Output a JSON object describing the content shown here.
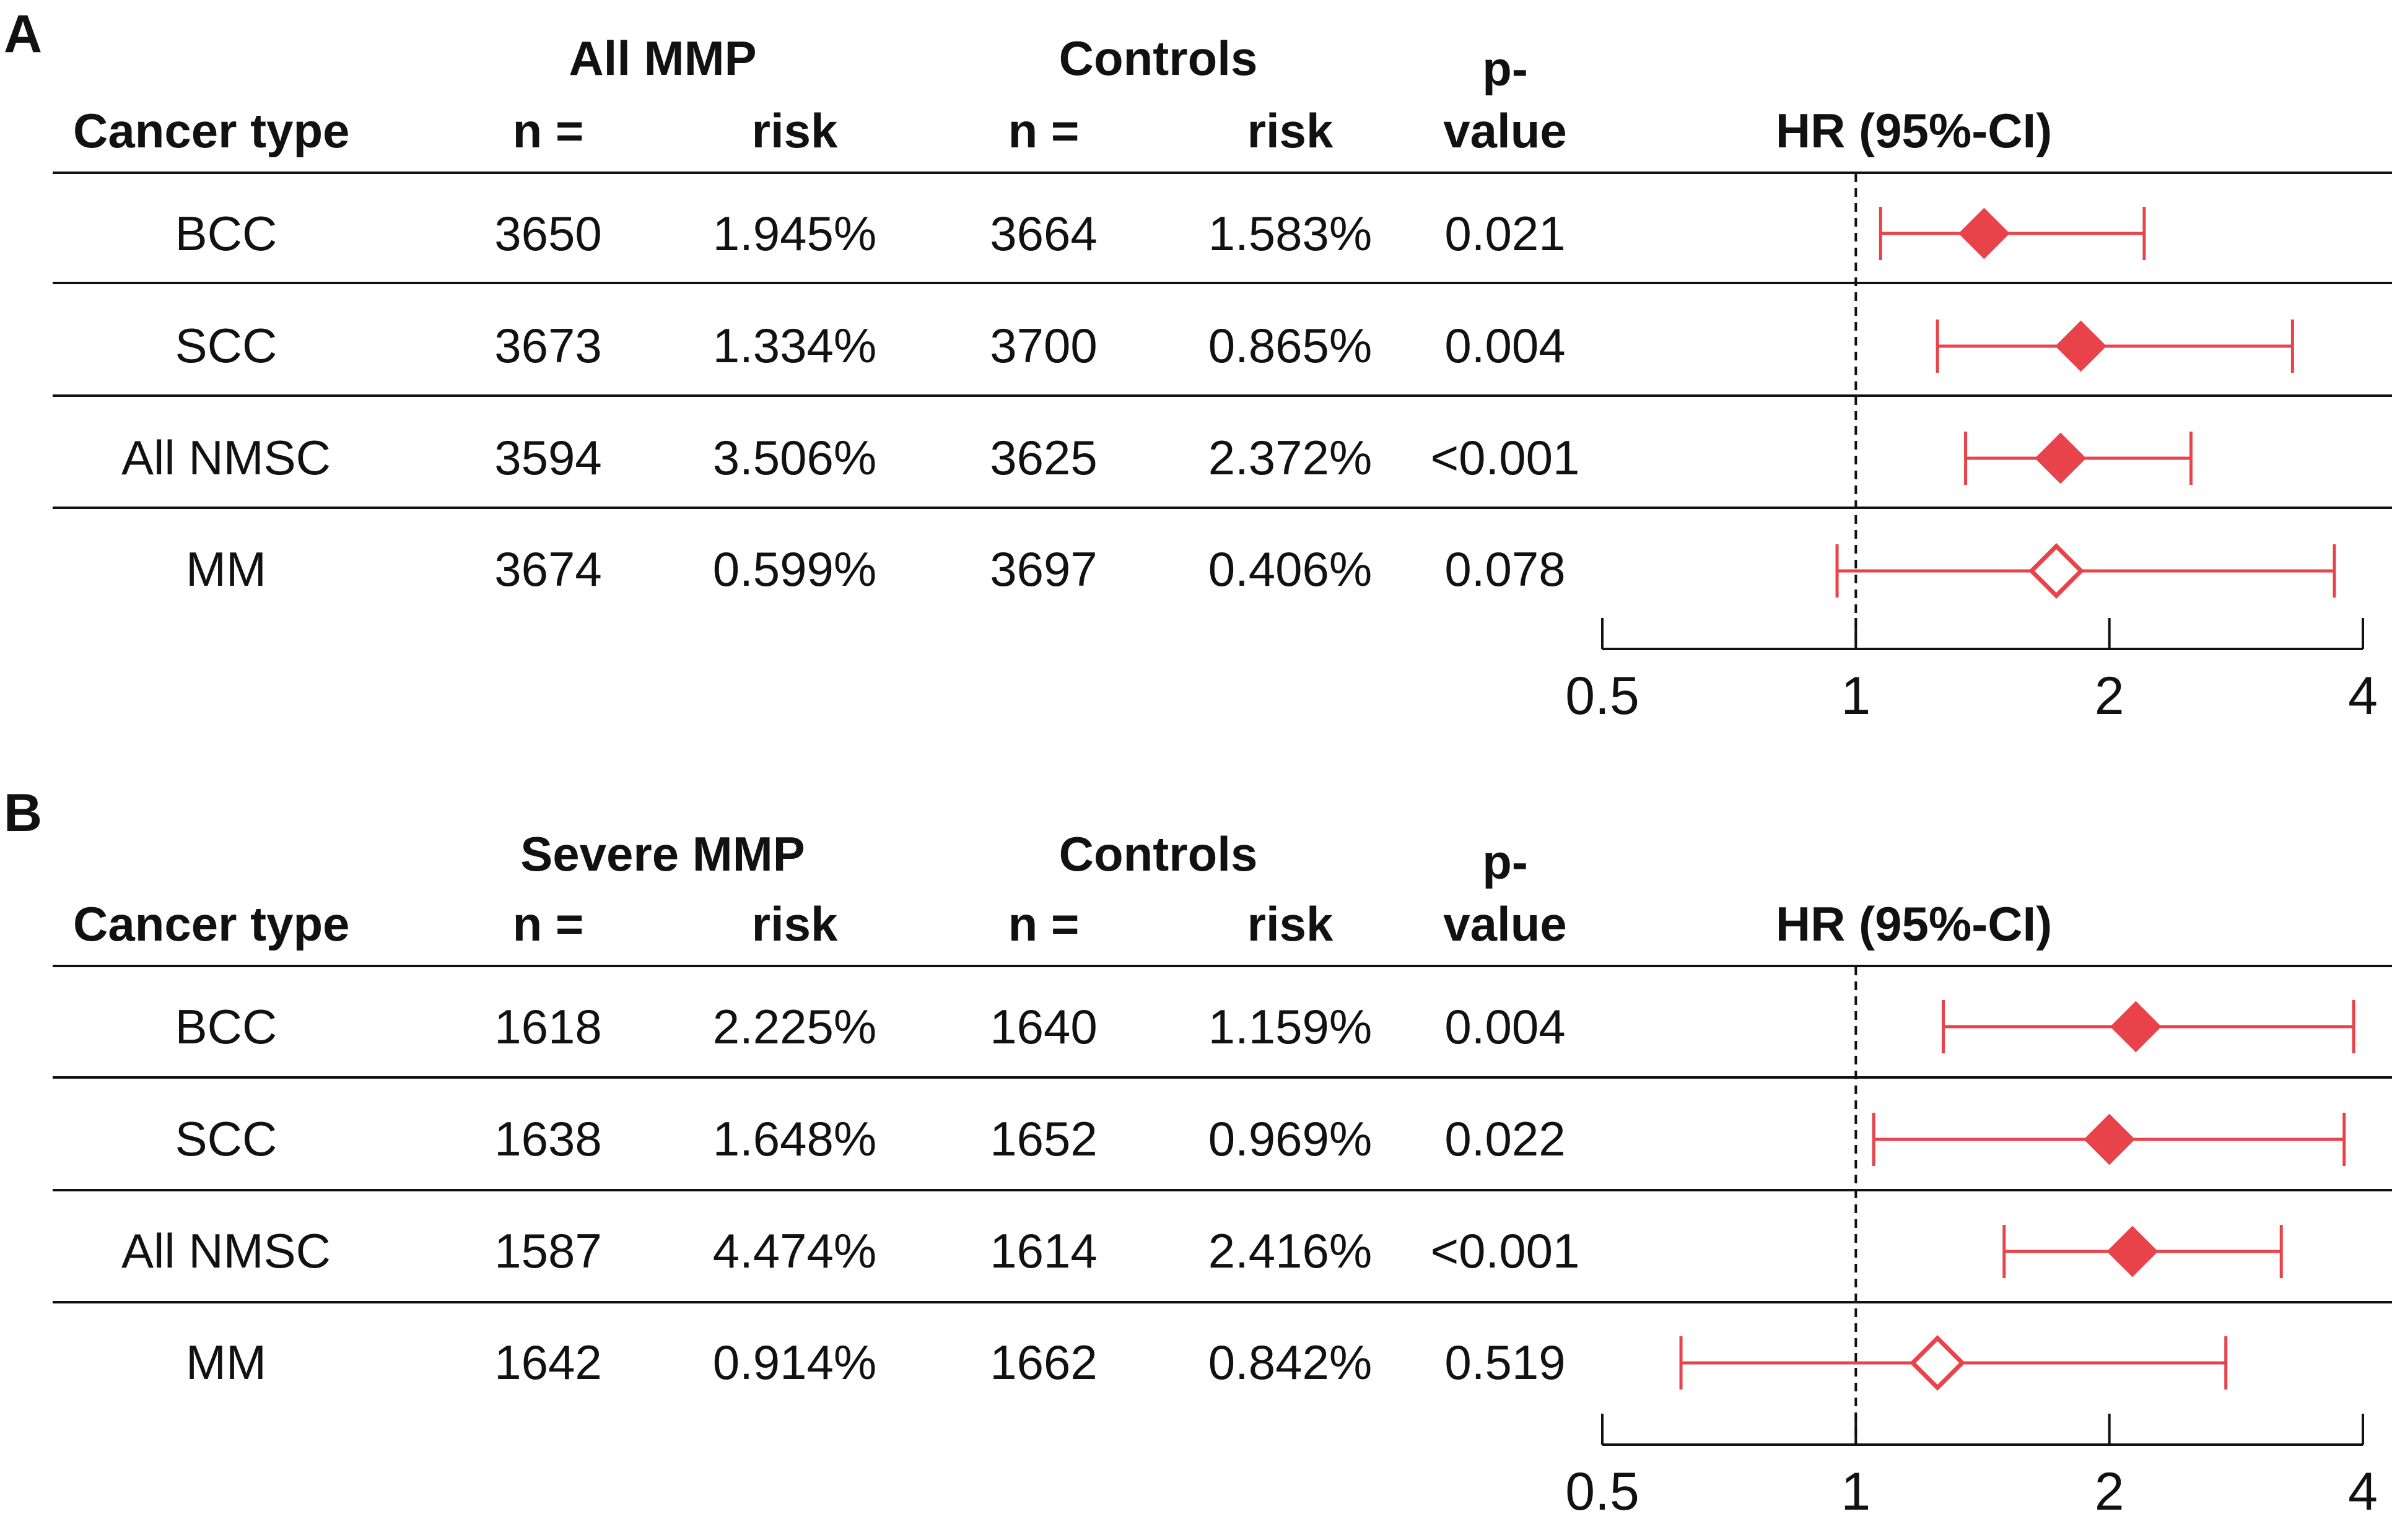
{
  "chart_data": [
    {
      "type": "forest",
      "panel_label": "A",
      "headers": {
        "cancer_type": "Cancer type",
        "group": "All MMP",
        "controls": "Controls",
        "n": "n =",
        "risk": "risk",
        "p1": "p-",
        "p2": "value",
        "hr": "HR (95%-CI)"
      },
      "rows": [
        {
          "type": "BCC",
          "n": "3650",
          "risk": "1.945%",
          "cn": "3664",
          "crisk": "1.583%",
          "p": "0.021",
          "hr": 1.42,
          "lo": 1.07,
          "hi": 2.2,
          "significant": true
        },
        {
          "type": "SCC",
          "n": "3673",
          "risk": "1.334%",
          "cn": "3700",
          "crisk": "0.865%",
          "p": "0.004",
          "hr": 1.85,
          "lo": 1.25,
          "hi": 3.3,
          "significant": true
        },
        {
          "type": "All NMSC",
          "n": "3594",
          "risk": "3.506%",
          "cn": "3625",
          "crisk": "2.372%",
          "p": "<0.001",
          "hr": 1.75,
          "lo": 1.35,
          "hi": 2.5,
          "significant": true
        },
        {
          "type": "MM",
          "n": "3674",
          "risk": "0.599%",
          "cn": "3697",
          "crisk": "0.406%",
          "p": "0.078",
          "hr": 1.73,
          "lo": 0.95,
          "hi": 3.7,
          "significant": false
        }
      ],
      "x_axis": {
        "scale": "log2",
        "min": 0.5,
        "max": 4,
        "ticks": [
          "0.5",
          "1",
          "2",
          "4"
        ],
        "reference": 1
      }
    },
    {
      "type": "forest",
      "panel_label": "B",
      "headers": {
        "cancer_type": "Cancer type",
        "group": "Severe MMP",
        "controls": "Controls",
        "n": "n =",
        "risk": "risk",
        "p1": "p-",
        "p2": "value",
        "hr": "HR (95%-CI)"
      },
      "rows": [
        {
          "type": "BCC",
          "n": "1618",
          "risk": "2.225%",
          "cn": "1640",
          "crisk": "1.159%",
          "p": "0.004",
          "hr": 2.15,
          "lo": 1.27,
          "hi": 3.9,
          "significant": true
        },
        {
          "type": "SCC",
          "n": "1638",
          "risk": "1.648%",
          "cn": "1652",
          "crisk": "0.969%",
          "p": "0.022",
          "hr": 2.0,
          "lo": 1.05,
          "hi": 3.8,
          "significant": true
        },
        {
          "type": "All NMSC",
          "n": "1587",
          "risk": "4.474%",
          "cn": "1614",
          "crisk": "2.416%",
          "p": "<0.001",
          "hr": 2.13,
          "lo": 1.5,
          "hi": 3.2,
          "significant": true
        },
        {
          "type": "MM",
          "n": "1642",
          "risk": "0.914%",
          "cn": "1662",
          "crisk": "0.842%",
          "p": "0.519",
          "hr": 1.25,
          "lo": 0.62,
          "hi": 2.75,
          "significant": false
        }
      ],
      "x_axis": {
        "scale": "log2",
        "min": 0.5,
        "max": 4,
        "ticks": [
          "0.5",
          "1",
          "2",
          "4"
        ],
        "reference": 1
      }
    }
  ],
  "colors": {
    "marker": "#e8434a",
    "text": "#111111",
    "reference_line": "#111111"
  }
}
